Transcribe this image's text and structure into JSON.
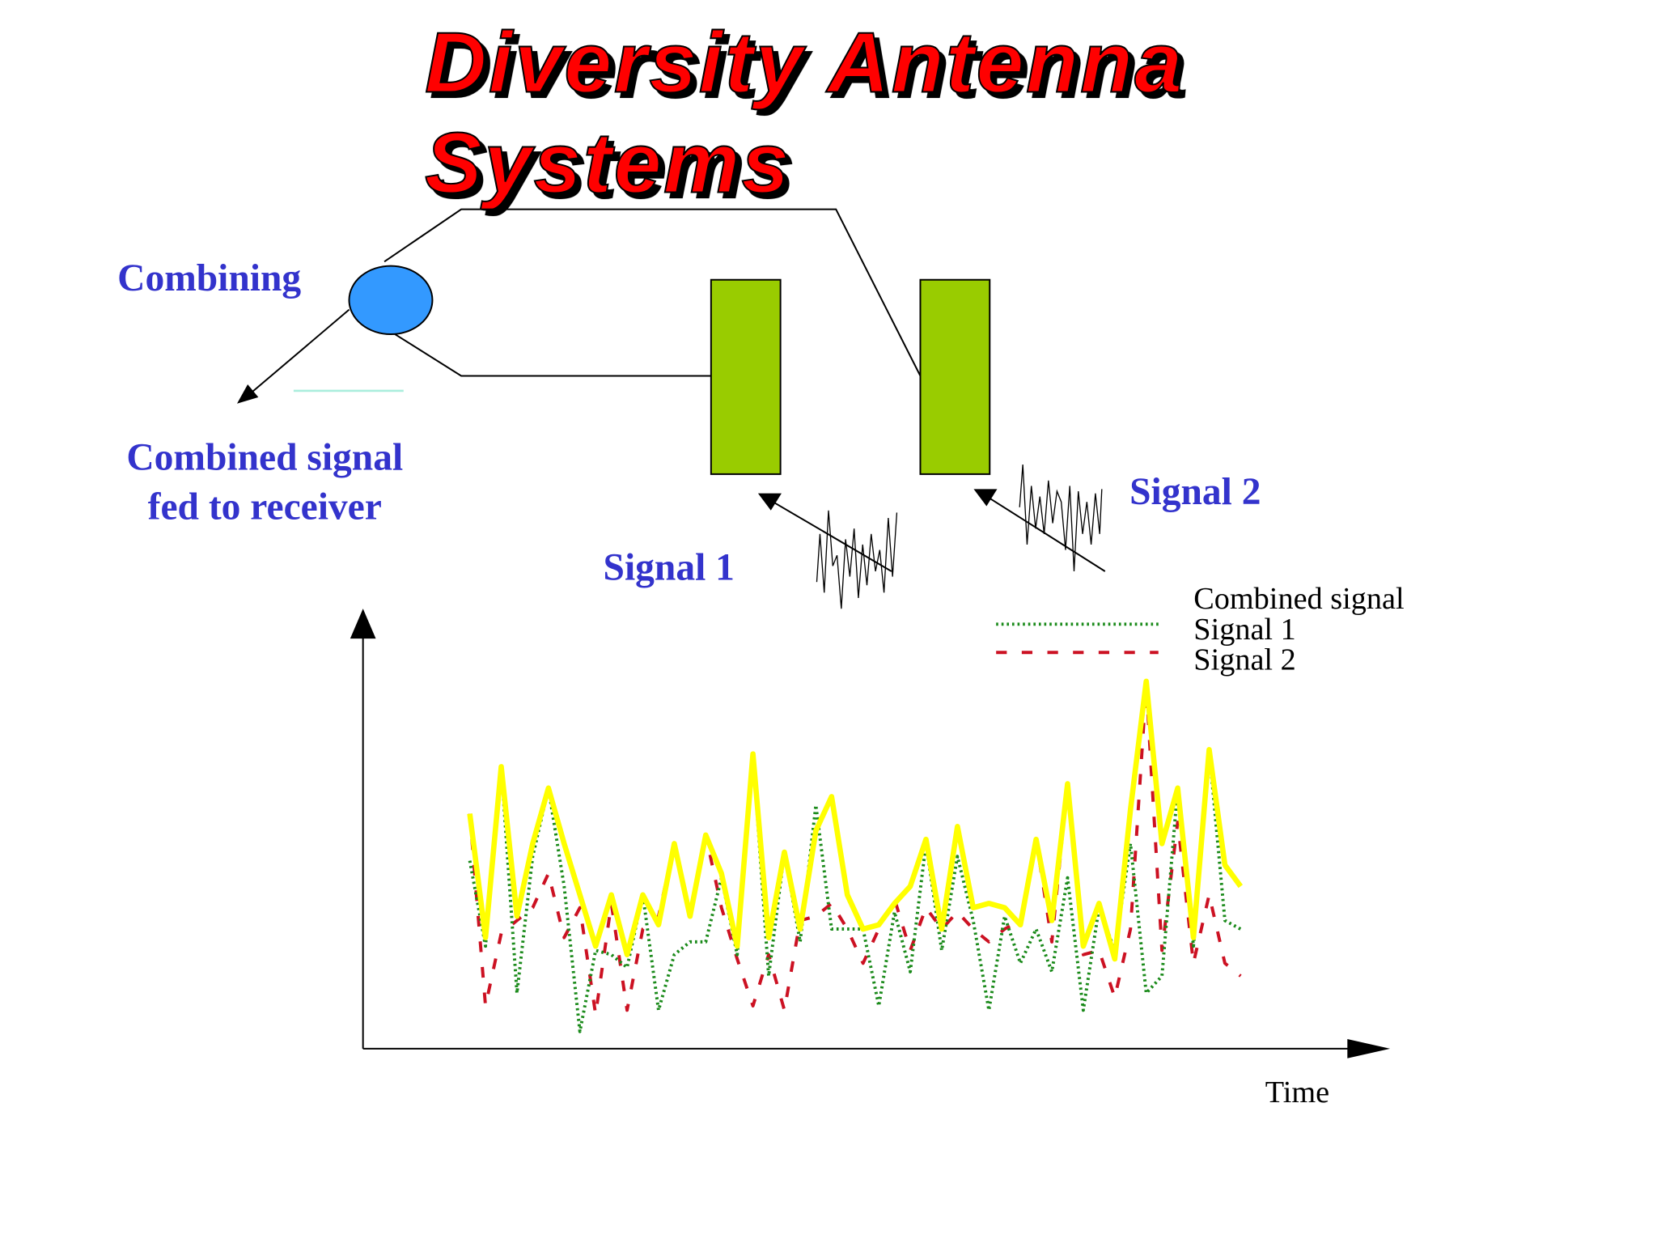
{
  "title_lines": [
    "Diversity Antenna",
    "Systems"
  ],
  "diagram": {
    "combining": "Combining",
    "output_lines": [
      "Combined signal",
      "fed to receiver"
    ],
    "signal_1": "Signal 1",
    "signal_2": "Signal 2"
  },
  "chart_data": {
    "type": "line",
    "xlabel": "Time",
    "ylim": [
      0,
      100
    ],
    "legend": "top-right",
    "series": [
      {
        "name": "Combined signal",
        "color": "#ffff00",
        "style": "solid",
        "values": [
          55,
          26,
          66,
          31,
          48,
          61,
          48,
          36,
          24,
          36,
          22,
          36,
          29,
          48,
          31,
          50,
          41,
          24,
          69,
          26,
          46,
          28,
          51,
          59,
          36,
          28,
          29,
          34,
          38,
          49,
          28,
          52,
          33,
          34,
          33,
          29,
          49,
          30,
          62,
          24,
          34,
          21,
          56,
          86,
          48,
          61,
          26,
          70,
          43,
          38
        ]
      },
      {
        "name": "Signal 1",
        "color": "#1a8a1a",
        "style": "dotted",
        "values": [
          44,
          24,
          66,
          13,
          45,
          61,
          38,
          4,
          23,
          22,
          19,
          36,
          9,
          22,
          25,
          25,
          40,
          22,
          69,
          17,
          46,
          25,
          57,
          28,
          28,
          28,
          10,
          32,
          18,
          48,
          23,
          45,
          30,
          9,
          31,
          20,
          28,
          18,
          40,
          9,
          33,
          23,
          48,
          13,
          17,
          61,
          24,
          70,
          30,
          28
        ]
      },
      {
        "name": "Signal 2",
        "color": "#cc1122",
        "style": "dashed",
        "values": [
          55,
          10,
          27,
          30,
          33,
          41,
          26,
          33,
          8,
          34,
          9,
          28,
          31,
          48,
          31,
          50,
          33,
          21,
          10,
          22,
          9,
          30,
          31,
          34,
          28,
          20,
          28,
          35,
          23,
          33,
          28,
          32,
          28,
          25,
          28,
          30,
          49,
          25,
          62,
          22,
          23,
          12,
          28,
          85,
          23,
          53,
          20,
          36,
          20,
          17
        ]
      }
    ]
  }
}
